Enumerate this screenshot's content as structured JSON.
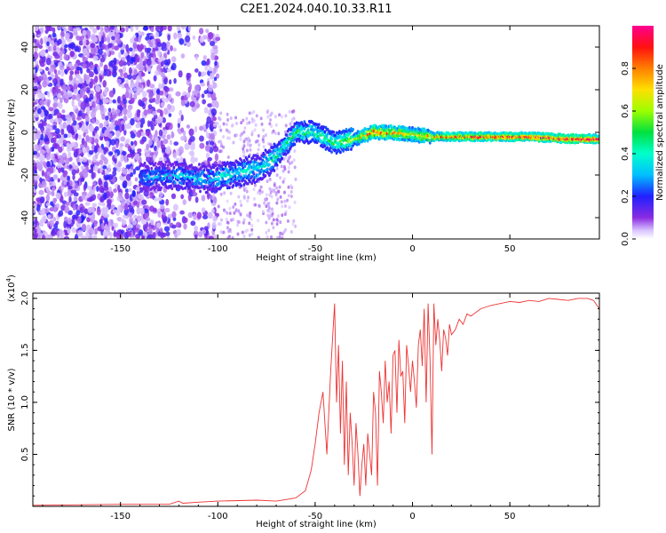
{
  "figure_title": "C2E1.2024.040.10.33.R11",
  "chart_data": [
    {
      "type": "heatmap",
      "title": "C2E1.2024.040.10.33.R11",
      "xlabel": "Height of straight line (km)",
      "ylabel": "Frequency (Hz)",
      "xlim": [
        -195,
        96
      ],
      "ylim": [
        -50,
        50
      ],
      "x_ticks": [
        -150,
        -100,
        -50,
        0,
        50
      ],
      "y_ticks": [
        -40,
        -20,
        0,
        20,
        40
      ],
      "colorbar": {
        "label": "Normalized spectral amplitude",
        "range": [
          0.0,
          1.0
        ],
        "ticks": [
          0.0,
          0.2,
          0.4,
          0.6,
          0.8
        ],
        "tick_labels": [
          "0.0",
          "0.2",
          "0.4",
          "0.6",
          "0.8"
        ],
        "colormap": "rainbow (white-violet-blue-cyan-green-yellow-red-magenta)"
      },
      "signal_track": {
        "x": [
          -140,
          -120,
          -105,
          -95,
          -80,
          -72,
          -60,
          -50,
          -40,
          -30,
          -20,
          -10,
          0,
          10,
          20,
          40,
          60,
          80,
          96
        ],
        "frequency_hz": [
          -21,
          -20,
          -22,
          -20,
          -17,
          -13,
          0,
          0,
          -5,
          -3,
          0,
          0,
          -1,
          -2,
          -2,
          -2,
          -2,
          -3,
          -3
        ],
        "peak_amplitude": [
          0.3,
          0.35,
          0.35,
          0.4,
          0.4,
          0.45,
          0.5,
          0.5,
          0.5,
          0.6,
          0.9,
          0.8,
          0.7,
          0.8,
          0.9,
          0.95,
          0.95,
          1.0,
          1.0
        ]
      },
      "noise_region_x": [
        -195,
        -100
      ],
      "grid": false
    },
    {
      "type": "line",
      "xlabel": "Height of straight line (km)",
      "ylabel": "SNR (10 * v/v)",
      "y_multiplier": "(x10",
      "y_multiplier_exp": "4",
      "y_multiplier_close": ")",
      "xlim": [
        -195,
        96
      ],
      "ylim": [
        0,
        2.05
      ],
      "x_ticks": [
        -150,
        -100,
        -50,
        0,
        50
      ],
      "y_ticks": [
        0.5,
        1.0,
        1.5,
        2.0
      ],
      "y_tick_labels": [
        "0.5",
        "1.0",
        "1.5",
        "2.0"
      ],
      "series": [
        {
          "color": "#ee3333",
          "x": [
            -195,
            -150,
            -125,
            -120,
            -118,
            -110,
            -100,
            -80,
            -70,
            -60,
            -55,
            -52,
            -50,
            -48,
            -46,
            -44,
            -42,
            -40,
            -39,
            -38,
            -37,
            -36,
            -35,
            -34,
            -33,
            -32,
            -31,
            -30,
            -29,
            -28,
            -27,
            -26,
            -25,
            -24,
            -23,
            -22,
            -21,
            -20,
            -19,
            -18,
            -17,
            -16,
            -15,
            -14,
            -13,
            -12,
            -11,
            -10,
            -9,
            -8,
            -7,
            -6,
            -5,
            -4,
            -3,
            -2,
            -1,
            0,
            1,
            2,
            3,
            4,
            5,
            6,
            7,
            8,
            9,
            10,
            11,
            12,
            13,
            14,
            15,
            16,
            17,
            18,
            19,
            20,
            22,
            24,
            26,
            28,
            30,
            35,
            40,
            45,
            50,
            55,
            60,
            65,
            70,
            75,
            80,
            85,
            90,
            93,
            96
          ],
          "y": [
            0.01,
            0.02,
            0.02,
            0.05,
            0.03,
            0.04,
            0.05,
            0.06,
            0.05,
            0.08,
            0.15,
            0.35,
            0.6,
            0.9,
            1.1,
            0.5,
            1.3,
            1.95,
            1.0,
            1.55,
            0.7,
            1.4,
            0.4,
            1.2,
            0.3,
            0.9,
            0.6,
            0.2,
            0.8,
            0.5,
            0.1,
            0.4,
            0.6,
            0.2,
            0.7,
            0.5,
            0.3,
            1.1,
            0.9,
            0.2,
            1.3,
            1.1,
            0.8,
            1.4,
            1.0,
            1.2,
            0.7,
            1.45,
            1.5,
            0.9,
            1.6,
            1.25,
            1.3,
            0.8,
            1.55,
            1.35,
            1.1,
            1.4,
            1.2,
            0.95,
            1.55,
            1.7,
            1.35,
            1.9,
            1.0,
            1.95,
            1.4,
            0.5,
            1.95,
            1.55,
            1.8,
            1.6,
            1.3,
            1.7,
            1.62,
            1.45,
            1.75,
            1.65,
            1.7,
            1.8,
            1.75,
            1.85,
            1.83,
            1.9,
            1.93,
            1.95,
            1.97,
            1.96,
            1.98,
            1.97,
            2.0,
            1.99,
            1.98,
            2.0,
            2.0,
            1.98,
            1.9
          ]
        }
      ],
      "grid": false
    }
  ]
}
